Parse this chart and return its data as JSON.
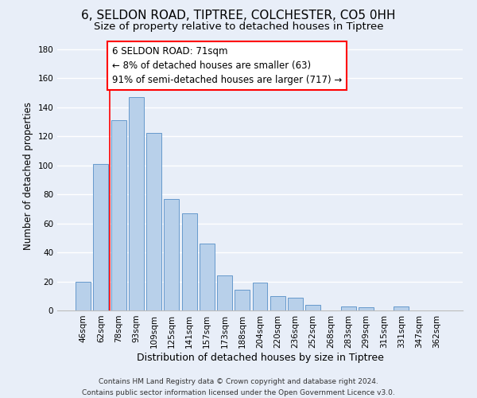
{
  "title": "6, SELDON ROAD, TIPTREE, COLCHESTER, CO5 0HH",
  "subtitle": "Size of property relative to detached houses in Tiptree",
  "xlabel": "Distribution of detached houses by size in Tiptree",
  "ylabel": "Number of detached properties",
  "categories": [
    "46sqm",
    "62sqm",
    "78sqm",
    "93sqm",
    "109sqm",
    "125sqm",
    "141sqm",
    "157sqm",
    "173sqm",
    "188sqm",
    "204sqm",
    "220sqm",
    "236sqm",
    "252sqm",
    "268sqm",
    "283sqm",
    "299sqm",
    "315sqm",
    "331sqm",
    "347sqm",
    "362sqm"
  ],
  "values": [
    20,
    101,
    131,
    147,
    122,
    77,
    67,
    46,
    24,
    14,
    19,
    10,
    9,
    4,
    0,
    3,
    2,
    0,
    3,
    0,
    0
  ],
  "bar_color": "#b8d0ea",
  "bar_edge_color": "#6699cc",
  "vline_x_index": 1.5,
  "annotation_box_text": "6 SELDON ROAD: 71sqm\n← 8% of detached houses are smaller (63)\n91% of semi-detached houses are larger (717) →",
  "ylim": [
    0,
    185
  ],
  "yticks": [
    0,
    20,
    40,
    60,
    80,
    100,
    120,
    140,
    160,
    180
  ],
  "footer_line1": "Contains HM Land Registry data © Crown copyright and database right 2024.",
  "footer_line2": "Contains public sector information licensed under the Open Government Licence v3.0.",
  "background_color": "#e8eef8",
  "grid_color": "#ffffff",
  "title_fontsize": 11,
  "subtitle_fontsize": 9.5,
  "xlabel_fontsize": 9,
  "ylabel_fontsize": 8.5,
  "tick_fontsize": 7.5,
  "annotation_fontsize": 8.5,
  "footer_fontsize": 6.5
}
